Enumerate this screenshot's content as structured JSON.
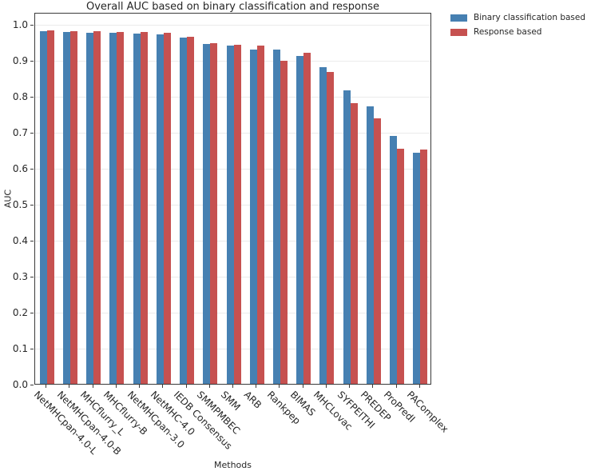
{
  "chart_data": {
    "type": "bar",
    "title": "Overall AUC based on binary classification and response",
    "xlabel": "Methods",
    "ylabel": "AUC",
    "ylim": [
      0.0,
      1.033
    ],
    "yticks": [
      0.0,
      0.1,
      0.2,
      0.3,
      0.4,
      0.5,
      0.6,
      0.7,
      0.8,
      0.9,
      1.0
    ],
    "grid": "horizontal light gray lines at each 0.1",
    "legend_position": "upper right, outside plot, frameless",
    "x_tick_label_rotation": "45deg clockwise, anchored at tick",
    "categories": [
      "NetMHCpan-4.0-L",
      "NetMHCpan-4.0-B",
      "MHCflurry_L",
      "MHCflurry-B",
      "NetMHCpan-3.0",
      "NetMHC-4.0",
      "IEDB Consensus",
      "SMMPMBEC",
      "SMM",
      "ARB",
      "Rankpep",
      "BIMAS",
      "MHCLovac",
      "SYFPEITHI",
      "PREDEP",
      "ProPredI",
      "PAComplex"
    ],
    "series": [
      {
        "name": "Binary classification based",
        "color": "#4680b2",
        "values": [
          0.98,
          0.978,
          0.976,
          0.975,
          0.974,
          0.971,
          0.963,
          0.944,
          0.94,
          0.93,
          0.929,
          0.912,
          0.881,
          0.815,
          0.772,
          0.689,
          0.643
        ]
      },
      {
        "name": "Response based",
        "color": "#c65150",
        "values": [
          0.982,
          0.98,
          0.979,
          0.978,
          0.977,
          0.975,
          0.965,
          0.946,
          0.942,
          0.941,
          0.898,
          0.92,
          0.867,
          0.779,
          0.738,
          0.653,
          0.651
        ]
      }
    ]
  },
  "colors": {
    "spine": "#3a3a3a",
    "grid": "#ebebeb",
    "text": "#262626",
    "background": "#ffffff"
  }
}
